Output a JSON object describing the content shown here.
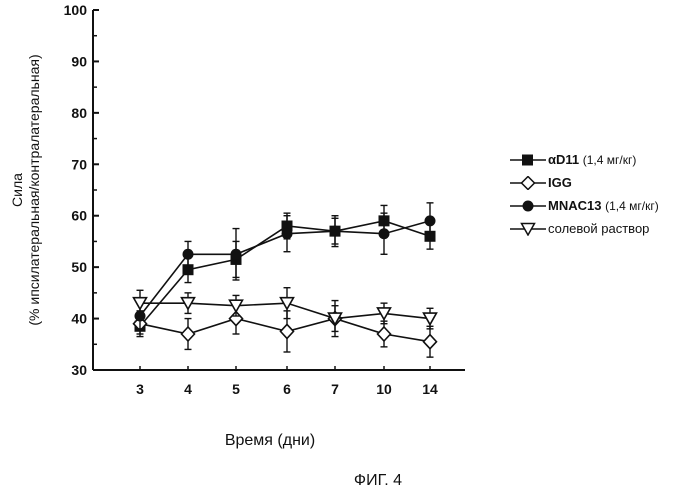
{
  "chart_data": {
    "type": "line",
    "x_categories": [
      "3",
      "4",
      "5",
      "6",
      "7",
      "10",
      "14"
    ],
    "ylabel_line1": "Сила",
    "ylabel_line2": "(% ипсилатеральная/контралатеральная)",
    "xlabel": "Время (дни)",
    "ylim": [
      30,
      100
    ],
    "yticks": [
      "30",
      "40",
      "50",
      "60",
      "70",
      "80",
      "90",
      "100"
    ],
    "grid": false,
    "legend_position": "right",
    "series": [
      {
        "name": "αD11",
        "unit": "(1,4 мг/кг)",
        "marker": "filled-square",
        "values": [
          38.5,
          49.5,
          51.5,
          58.0,
          57.0,
          59.0,
          56.0
        ],
        "errors": [
          1.5,
          2.5,
          3.5,
          2.5,
          2.5,
          3.0,
          2.5
        ]
      },
      {
        "name": "IGG",
        "unit": "",
        "marker": "open-diamond",
        "values": [
          39.0,
          37.0,
          40.0,
          37.5,
          40.0,
          37.0,
          35.5
        ],
        "errors": [
          2.5,
          3.0,
          3.0,
          4.0,
          2.5,
          2.5,
          3.0
        ]
      },
      {
        "name": "MNAC13",
        "unit": "(1,4 мг/кг)",
        "marker": "filled-circle",
        "values": [
          40.5,
          52.5,
          52.5,
          56.5,
          57.0,
          56.5,
          59.0
        ],
        "errors": [
          2.5,
          2.5,
          5.0,
          3.5,
          3.0,
          4.0,
          3.5
        ]
      },
      {
        "name": "солевой раствор",
        "unit": "",
        "marker": "open-triangle-down",
        "values": [
          43.0,
          43.0,
          42.5,
          43.0,
          40.0,
          41.0,
          40.0
        ],
        "errors": [
          2.5,
          2.0,
          2.0,
          3.0,
          3.5,
          2.0,
          2.0
        ]
      }
    ]
  },
  "figure_caption": "ФИГ. 4"
}
